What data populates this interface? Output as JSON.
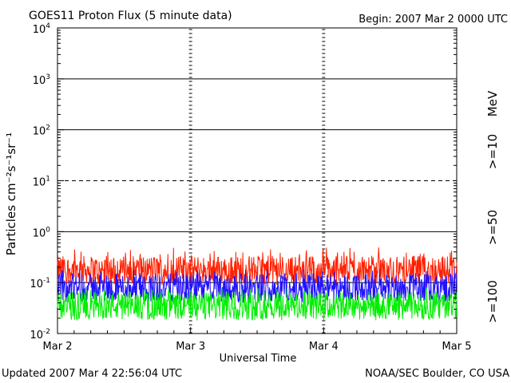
{
  "header": {
    "title": "GOES11 Proton Flux (5 minute data)",
    "begin": "Begin: 2007 Mar 2 0000 UTC"
  },
  "footer": {
    "updated": "Updated 2007 Mar  4 22:56:04 UTC",
    "credit": "NOAA/SEC Boulder, CO USA"
  },
  "chart_data": {
    "type": "line",
    "title": "GOES11 Proton Flux (5 minute data)",
    "xlabel": "Universal Time",
    "ylabel": "Particles cm⁻²s⁻¹sr⁻¹",
    "x_ticks": [
      "Mar 2",
      "Mar 3",
      "Mar 4",
      "Mar 5"
    ],
    "y_ticks": [
      {
        "base": "10",
        "exp": "-2",
        "value": 0.01
      },
      {
        "base": "10",
        "exp": "-1",
        "value": 0.1
      },
      {
        "base": "10",
        "exp": "0",
        "value": 1
      },
      {
        "base": "10",
        "exp": "1",
        "value": 10
      },
      {
        "base": "10",
        "exp": "2",
        "value": 100
      },
      {
        "base": "10",
        "exp": "3",
        "value": 1000
      },
      {
        "base": "10",
        "exp": "4",
        "value": 10000
      }
    ],
    "y_scale": "log",
    "ylim": [
      0.01,
      10000
    ],
    "xlim": [
      "2007-03-02 00:00",
      "2007-03-05 00:00"
    ],
    "grid": true,
    "unit_label": "MeV",
    "series": [
      {
        "name": ">=10",
        "color": "#ff2000",
        "typical": 0.18,
        "min": 0.09,
        "max": 0.5
      },
      {
        "name": ">=50",
        "color": "#2010ff",
        "typical": 0.08,
        "min": 0.04,
        "max": 0.19
      },
      {
        "name": ">=100",
        "color": "#00ee00",
        "typical": 0.035,
        "min": 0.018,
        "max": 0.08
      }
    ]
  }
}
